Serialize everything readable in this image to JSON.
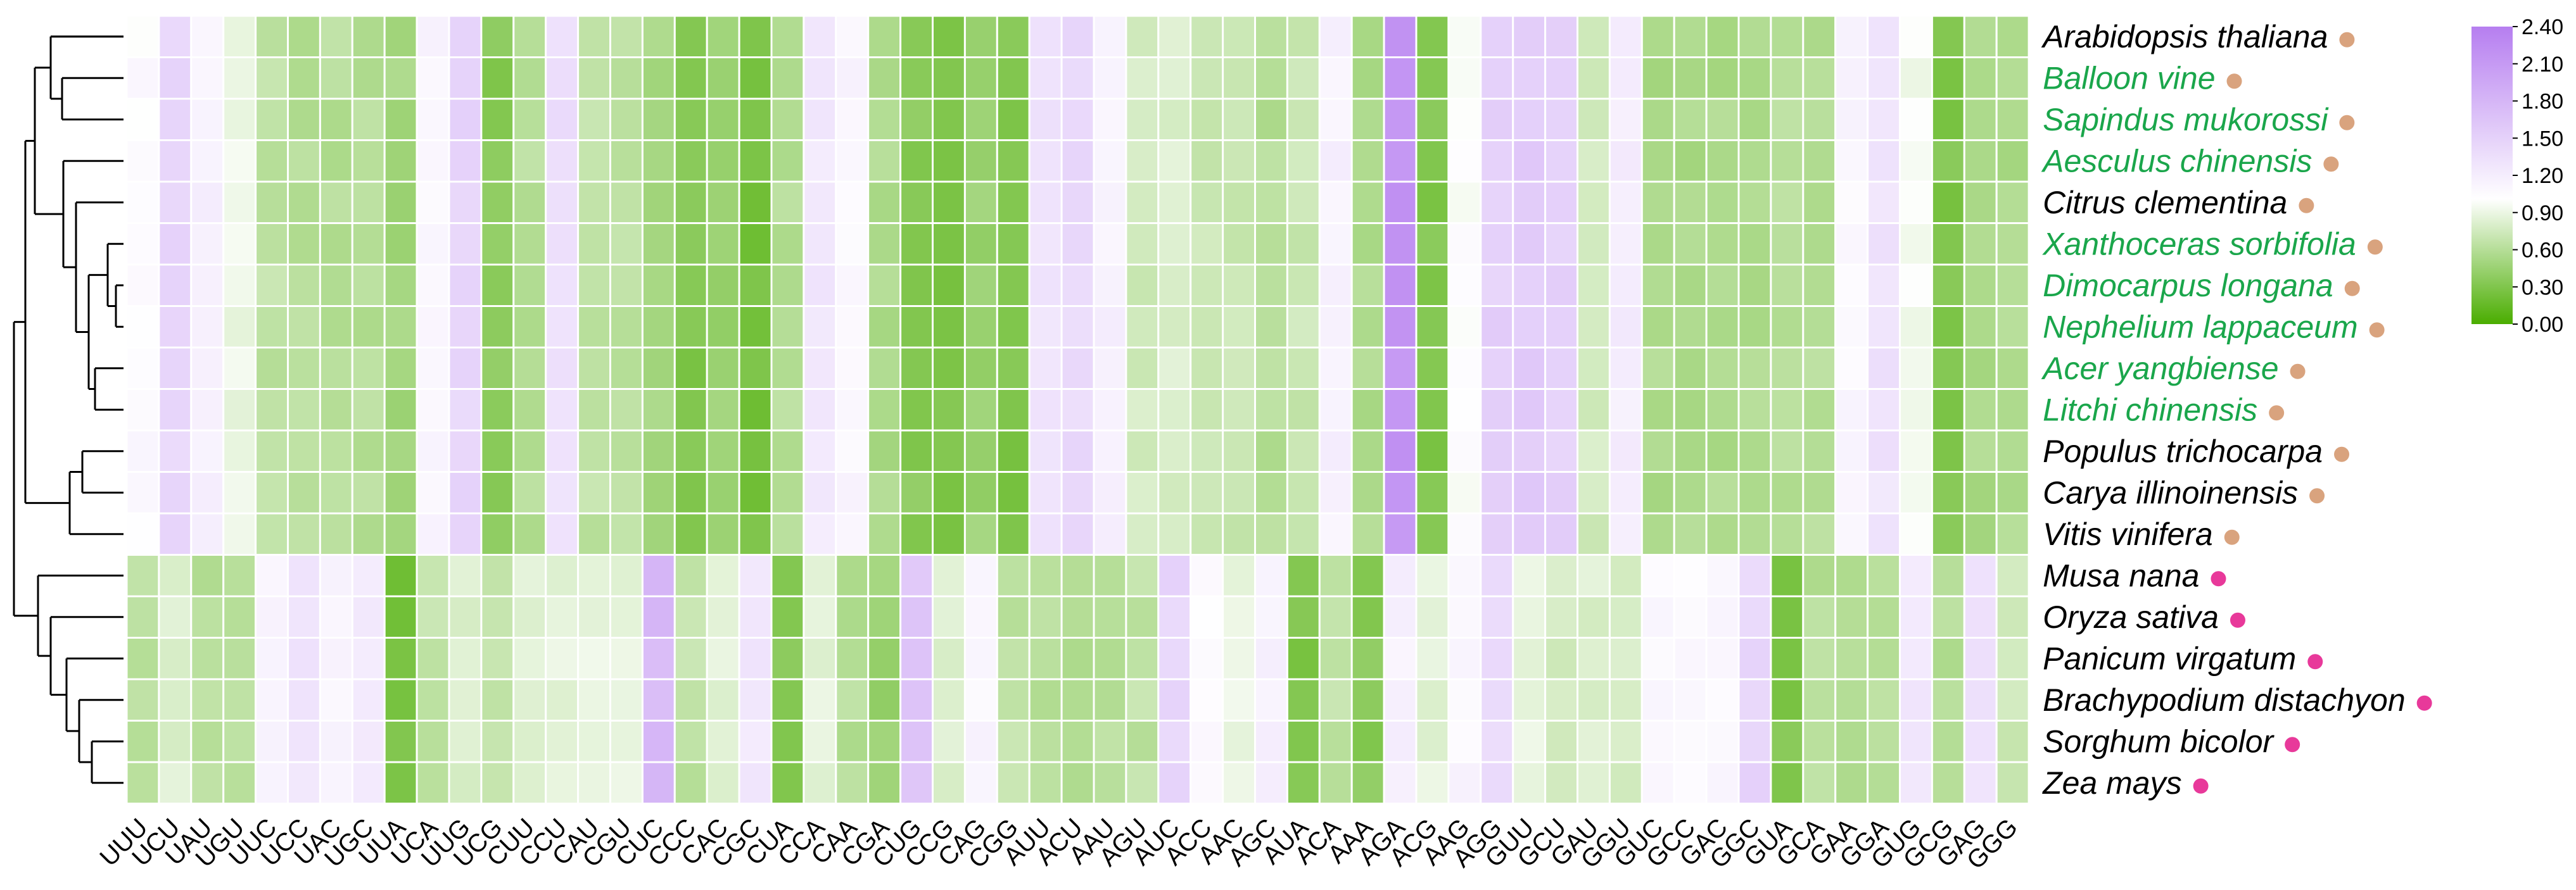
{
  "chart_data": {
    "type": "heatmap",
    "title": "",
    "xlabel": "",
    "ylabel": "",
    "colorscale": {
      "low": "#4aad00",
      "mid": "#ffffff",
      "high": "#b67ef0",
      "min": 0.0,
      "mid_value": 1.0,
      "max": 2.4
    },
    "colorbar_ticks": [
      "2.40",
      "2.10",
      "1.80",
      "1.50",
      "1.20",
      "0.90",
      "0.60",
      "0.30",
      "0.00"
    ],
    "species": [
      {
        "name": "Arabidopsis thaliana",
        "highlight": false,
        "dot": "tan"
      },
      {
        "name": "Balloon vine",
        "highlight": true,
        "dot": "tan"
      },
      {
        "name": "Sapindus mukorossi",
        "highlight": true,
        "dot": "tan"
      },
      {
        "name": "Aesculus chinensis",
        "highlight": true,
        "dot": "tan"
      },
      {
        "name": "Citrus clementina",
        "highlight": false,
        "dot": "tan"
      },
      {
        "name": "Xanthoceras sorbifolia",
        "highlight": true,
        "dot": "tan"
      },
      {
        "name": "Dimocarpus longana",
        "highlight": true,
        "dot": "tan"
      },
      {
        "name": "Nephelium lappaceum",
        "highlight": true,
        "dot": "tan"
      },
      {
        "name": "Acer yangbiense",
        "highlight": true,
        "dot": "tan"
      },
      {
        "name": "Litchi chinensis",
        "highlight": true,
        "dot": "tan"
      },
      {
        "name": "Populus trichocarpa",
        "highlight": false,
        "dot": "tan"
      },
      {
        "name": "Carya illinoinensis",
        "highlight": false,
        "dot": "tan"
      },
      {
        "name": "Vitis vinifera",
        "highlight": false,
        "dot": "tan"
      },
      {
        "name": "Musa nana",
        "highlight": false,
        "dot": "pink"
      },
      {
        "name": "Oryza sativa",
        "highlight": false,
        "dot": "pink"
      },
      {
        "name": "Panicum virgatum",
        "highlight": false,
        "dot": "pink"
      },
      {
        "name": "Brachypodium distachyon",
        "highlight": false,
        "dot": "pink"
      },
      {
        "name": "Sorghum bicolor",
        "highlight": false,
        "dot": "pink"
      },
      {
        "name": "Zea mays",
        "highlight": false,
        "dot": "pink"
      }
    ],
    "codons": [
      "UUU",
      "UCU",
      "UAU",
      "UGU",
      "UUC",
      "UCC",
      "UAC",
      "UGC",
      "UUA",
      "UCA",
      "UUG",
      "UCG",
      "CUU",
      "CCU",
      "CAU",
      "CGU",
      "CUC",
      "CCC",
      "CAC",
      "CGC",
      "CUA",
      "CCA",
      "CAA",
      "CGA",
      "CUG",
      "CCG",
      "CAG",
      "CGG",
      "AUU",
      "ACU",
      "AAU",
      "AGU",
      "AUC",
      "ACC",
      "AAC",
      "AGC",
      "AUA",
      "ACA",
      "AAA",
      "AGA",
      "ACG",
      "AAG",
      "AGG",
      "GUU",
      "GCU",
      "GAU",
      "GGU",
      "GUC",
      "GCC",
      "GAC",
      "GGC",
      "GUA",
      "GCA",
      "GAA",
      "GGA",
      "GUG",
      "GCG",
      "GAG",
      "GGG"
    ],
    "dicot_values": [
      1.05,
      1.45,
      1.15,
      0.9,
      0.65,
      0.6,
      0.6,
      0.6,
      0.5,
      1.1,
      1.45,
      0.35,
      0.6,
      1.35,
      0.65,
      0.65,
      0.5,
      0.3,
      0.45,
      0.25,
      0.6,
      1.25,
      1.1,
      0.55,
      0.35,
      0.3,
      0.45,
      0.3,
      1.3,
      1.4,
      1.15,
      0.75,
      0.8,
      0.7,
      0.7,
      0.6,
      0.7,
      1.15,
      0.55,
      2.15,
      0.3,
      1.0,
      1.5,
      1.55,
      1.5,
      0.75,
      1.2,
      0.55,
      0.55,
      0.55,
      0.55,
      0.6,
      0.6,
      1.1,
      1.3,
      0.95,
      0.3,
      0.55,
      0.55
    ],
    "monocot_values": [
      0.6,
      0.8,
      0.6,
      0.65,
      1.15,
      1.3,
      1.1,
      1.2,
      0.25,
      0.65,
      0.8,
      0.65,
      0.85,
      0.85,
      0.9,
      0.85,
      1.75,
      0.65,
      0.85,
      1.25,
      0.35,
      0.85,
      0.6,
      0.45,
      1.6,
      0.8,
      1.1,
      0.65,
      0.6,
      0.6,
      0.6,
      0.65,
      1.45,
      1.05,
      0.9,
      1.15,
      0.3,
      0.65,
      0.35,
      1.15,
      0.85,
      1.1,
      1.4,
      0.85,
      0.75,
      0.8,
      0.75,
      1.05,
      1.05,
      1.1,
      1.45,
      0.3,
      0.6,
      0.6,
      0.6,
      1.25,
      0.6,
      1.3,
      0.7
    ]
  },
  "colors": {
    "highlight_text": "#1aa64b",
    "normal_text": "#000000",
    "dot_tan": "#d9a37e",
    "dot_pink": "#e8399a",
    "grid_line": "#ffffff",
    "tree_line": "#000000"
  }
}
